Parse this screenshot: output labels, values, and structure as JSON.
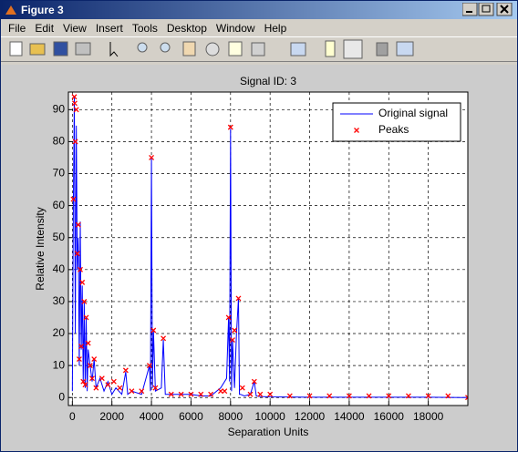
{
  "window": {
    "title": "Figure 3"
  },
  "menu": {
    "items": [
      "File",
      "Edit",
      "View",
      "Insert",
      "Tools",
      "Desktop",
      "Window",
      "Help"
    ]
  },
  "chart_data": {
    "type": "line",
    "title": "Signal ID: 3",
    "x_label": "Separation Units",
    "y_label": "Relative Intensity",
    "xlim": [
      -200,
      20000
    ],
    "ylim": [
      -2.5,
      95.5
    ],
    "xticks": [
      0,
      2000,
      4000,
      6000,
      8000,
      10000,
      12000,
      14000,
      16000,
      18000
    ],
    "yticks": [
      0,
      10,
      20,
      30,
      40,
      50,
      60,
      70,
      80,
      90
    ],
    "grid": true,
    "legend": "northeast",
    "series": [
      {
        "name": "Original signal",
        "color": "#0000ff",
        "mode": "line",
        "x": [
          0,
          50,
          100,
          150,
          200,
          250,
          300,
          350,
          400,
          450,
          500,
          550,
          600,
          650,
          700,
          750,
          800,
          900,
          1000,
          1100,
          1200,
          1400,
          1600,
          1800,
          2000,
          2200,
          2500,
          2700,
          2800,
          3000,
          3500,
          3900,
          3950,
          4000,
          4050,
          4100,
          4200,
          4500,
          4600,
          4700,
          5000,
          5500,
          6000,
          6500,
          7000,
          7500,
          7800,
          7900,
          7950,
          8000,
          8050,
          8100,
          8200,
          8300,
          8400,
          8450,
          8500,
          8700,
          9000,
          9200,
          9300,
          9500,
          10000,
          12000,
          14000,
          16000,
          18000,
          20000
        ],
        "values": [
          2,
          60,
          94,
          20,
          85,
          40,
          50,
          10,
          55,
          15,
          35,
          5,
          30,
          3,
          25,
          2,
          15,
          10,
          5,
          12,
          3,
          6,
          2,
          5,
          1,
          3,
          1,
          8,
          1,
          2,
          1,
          10,
          2,
          75,
          3,
          21,
          2,
          3,
          18,
          1,
          1,
          1,
          1,
          0.5,
          0.5,
          3,
          6,
          25,
          5,
          84,
          2,
          18,
          3,
          20,
          31,
          1,
          1,
          0.5,
          1,
          5,
          0.5,
          0.3,
          0.2,
          0.1,
          0.1,
          0.1,
          0.1,
          0
        ]
      },
      {
        "name": "Peaks",
        "color": "#ff0000",
        "mode": "markers",
        "x": [
          50,
          100,
          120,
          150,
          200,
          250,
          300,
          350,
          400,
          450,
          500,
          550,
          600,
          650,
          700,
          800,
          900,
          1000,
          1100,
          1200,
          1500,
          1800,
          2100,
          2400,
          2700,
          3000,
          3500,
          3900,
          4000,
          4100,
          4200,
          4600,
          5000,
          5500,
          6000,
          6500,
          7000,
          7500,
          7700,
          7900,
          8000,
          8100,
          8200,
          8400,
          8600,
          9000,
          9200,
          9500,
          10000,
          11000,
          12000,
          13000,
          14000,
          15000,
          16000,
          17000,
          18000,
          19000,
          20000
        ],
        "values": [
          62,
          94,
          92,
          80,
          90,
          45,
          54,
          12,
          40,
          16,
          36,
          5,
          30,
          4,
          25,
          17,
          10,
          6,
          12,
          3,
          6,
          4,
          5,
          3,
          8.5,
          2,
          2,
          10,
          75,
          21,
          3,
          18.5,
          1,
          1,
          1,
          1,
          1,
          2,
          2,
          25,
          84.5,
          18,
          21,
          31,
          3,
          1,
          5,
          1,
          1,
          0.5,
          0.5,
          0.5,
          0.5,
          0.5,
          0.5,
          0.5,
          0.5,
          0.5,
          0
        ]
      }
    ]
  }
}
